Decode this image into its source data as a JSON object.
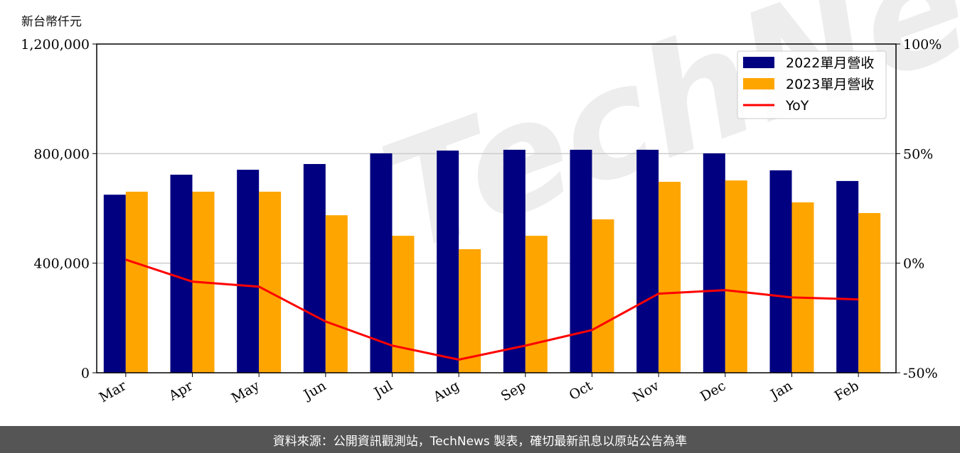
{
  "chart_data": {
    "type": "bar",
    "title": "",
    "ylabel": "新台幣仟元",
    "categories": [
      "Mar",
      "Apr",
      "May",
      "Jun",
      "Jul",
      "Aug",
      "Sep",
      "Oct",
      "Nov",
      "Dec",
      "Jan",
      "Feb"
    ],
    "ylim": [
      0,
      1200000
    ],
    "yticks": [
      "0",
      "400,000",
      "800,000",
      "1,200,000"
    ],
    "y2lim": [
      -50,
      100
    ],
    "y2ticks": [
      "-50%",
      "0%",
      "50%",
      "100%"
    ],
    "grid": "horizontal",
    "legend_position": "top-right",
    "series": [
      {
        "name": "2022單月營收",
        "type": "bar",
        "color": "#000080",
        "values": [
          650000,
          723000,
          741000,
          762000,
          801000,
          811000,
          814000,
          814000,
          814000,
          801000,
          739000,
          700000
        ]
      },
      {
        "name": "2023單月營收",
        "type": "bar",
        "color": "#FFA500",
        "values": [
          661000,
          661000,
          661000,
          575000,
          500000,
          451000,
          500000,
          560000,
          697000,
          702000,
          622000,
          583000
        ]
      },
      {
        "name": "YoY",
        "type": "line",
        "axis": "right",
        "color": "#FF0000",
        "values": [
          1.6,
          -8.4,
          -10.7,
          -26.6,
          -37.6,
          -44.0,
          -37.6,
          -30.5,
          -13.9,
          -12.3,
          -15.6,
          -16.5
        ]
      }
    ]
  },
  "watermark": "TechNews",
  "footer": "資料來源：公開資訊觀測站，TechNews 製表，確切最新訊息以原站公告為準"
}
